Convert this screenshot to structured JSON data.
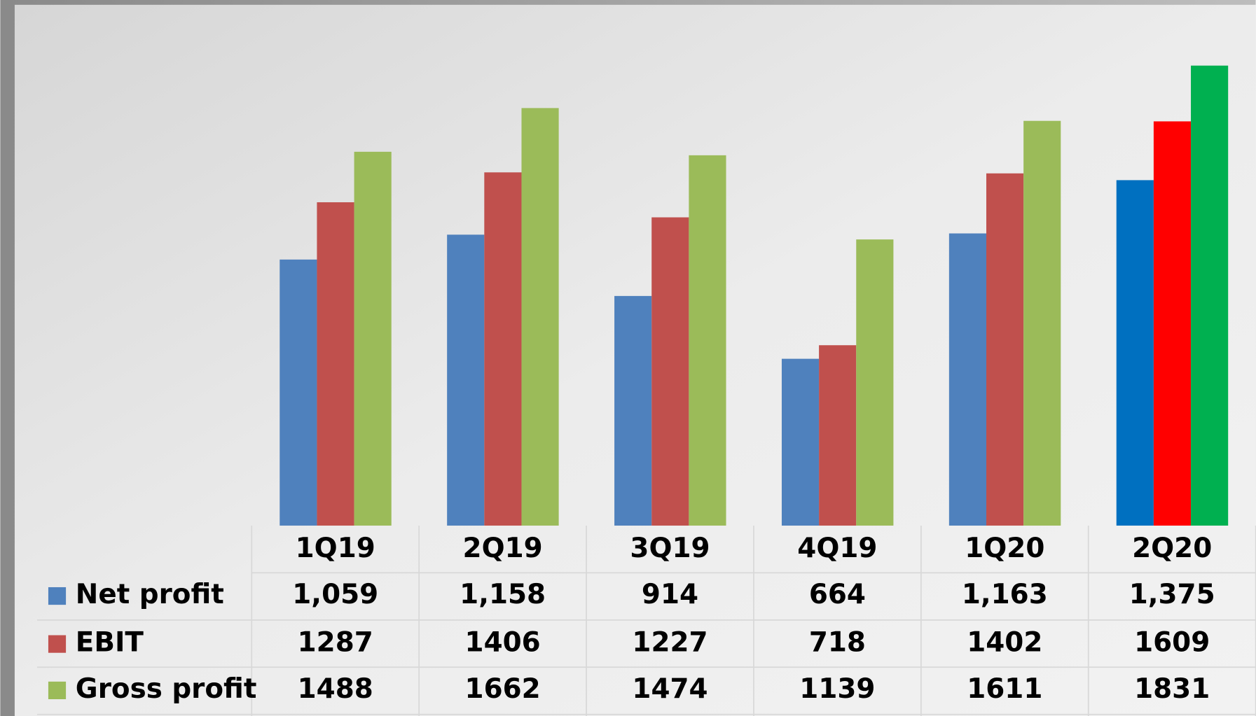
{
  "chart_data": {
    "type": "bar",
    "categories": [
      "1Q19",
      "2Q19",
      "3Q19",
      "4Q19",
      "1Q20",
      "2Q20"
    ],
    "series": [
      {
        "name": "Net profit",
        "color": "#4f81bd",
        "colors": [
          "#4f81bd",
          "#4f81bd",
          "#4f81bd",
          "#4f81bd",
          "#4f81bd",
          "#0070c0"
        ],
        "values": [
          1059,
          1158,
          914,
          664,
          1163,
          1375
        ],
        "value_labels": [
          "1,059",
          "1,158",
          "914",
          "664",
          "1,163",
          "1,375"
        ]
      },
      {
        "name": "EBIT",
        "color": "#c0504d",
        "colors": [
          "#c0504d",
          "#c0504d",
          "#c0504d",
          "#c0504d",
          "#c0504d",
          "#ff0000"
        ],
        "values": [
          1287,
          1406,
          1227,
          718,
          1402,
          1609
        ]
      },
      {
        "name": "Gross profit",
        "color": "#9bbb59",
        "colors": [
          "#9bbb59",
          "#9bbb59",
          "#9bbb59",
          "#9bbb59",
          "#9bbb59",
          "#00b050"
        ],
        "values": [
          1488,
          1662,
          1474,
          1139,
          1611,
          1831
        ]
      }
    ]
  }
}
